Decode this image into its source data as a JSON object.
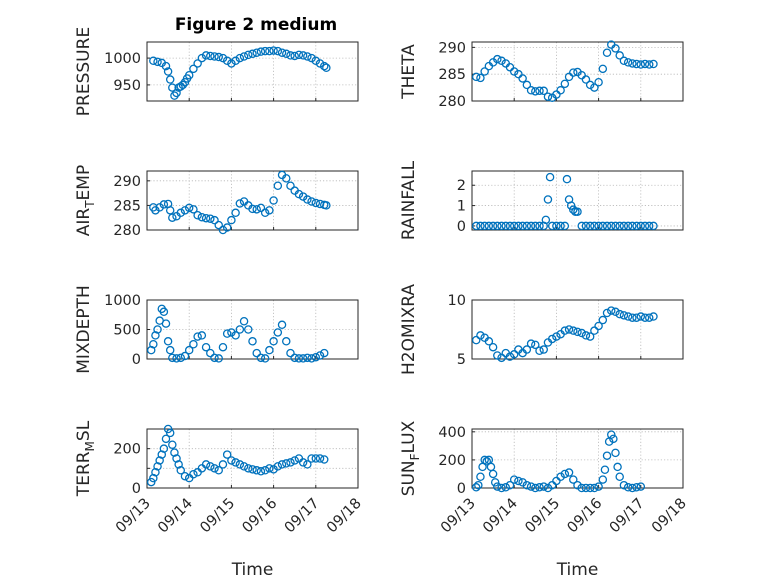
{
  "figure": {
    "title": "Figure 2 medium"
  },
  "chart_data": [
    {
      "type": "scatter",
      "ylabel_main": "PRESSURE",
      "ylabel_sub": "",
      "ylabel_rest": "",
      "xlabel": "",
      "ylim": [
        920,
        1030
      ],
      "yticks": [
        {
          "value": 950,
          "label": "950"
        },
        {
          "value": 1000,
          "label": "1000"
        }
      ],
      "xticks": [],
      "series": [
        {
          "x": [
            13.15,
            13.25,
            13.35,
            13.45,
            13.5,
            13.55,
            13.6,
            13.65,
            13.7,
            13.75,
            13.8,
            13.85,
            13.9,
            13.95,
            14.0,
            14.1,
            14.2,
            14.3,
            14.4,
            14.5,
            14.6,
            14.7,
            14.8,
            14.9,
            15.0,
            15.1,
            15.2,
            15.3,
            15.4,
            15.5,
            15.6,
            15.7,
            15.8,
            15.9,
            16.0,
            16.1,
            16.2,
            16.3,
            16.4,
            16.5,
            16.6,
            16.7,
            16.8,
            16.9,
            17.0,
            17.1,
            17.2,
            17.25
          ],
          "y": [
            995,
            993,
            991,
            985,
            975,
            960,
            945,
            930,
            935,
            945,
            947,
            950,
            955,
            962,
            968,
            980,
            990,
            1000,
            1005,
            1004,
            1003,
            1002,
            1000,
            995,
            990,
            995,
            1000,
            1003,
            1006,
            1008,
            1010,
            1012,
            1013,
            1013,
            1014,
            1013,
            1010,
            1008,
            1005,
            1004,
            1006,
            1005,
            1003,
            1000,
            995,
            990,
            985,
            982
          ]
        }
      ]
    },
    {
      "type": "scatter",
      "ylabel_main": "THETA",
      "ylabel_sub": "",
      "ylabel_rest": "",
      "xlabel": "",
      "ylim": [
        280,
        291
      ],
      "yticks": [
        {
          "value": 280,
          "label": "280"
        },
        {
          "value": 285,
          "label": "285"
        },
        {
          "value": 290,
          "label": "290"
        }
      ],
      "xticks": [],
      "series": [
        {
          "x": [
            13.1,
            13.2,
            13.3,
            13.4,
            13.5,
            13.6,
            13.7,
            13.8,
            13.9,
            14.0,
            14.1,
            14.2,
            14.3,
            14.4,
            14.5,
            14.6,
            14.7,
            14.8,
            14.9,
            15.0,
            15.1,
            15.2,
            15.3,
            15.4,
            15.5,
            15.6,
            15.7,
            15.8,
            15.9,
            16.0,
            16.1,
            16.2,
            16.3,
            16.4,
            16.5,
            16.6,
            16.7,
            16.8,
            16.9,
            17.0,
            17.1,
            17.2,
            17.3
          ],
          "y": [
            284.5,
            284.3,
            285.5,
            286.5,
            287.2,
            287.8,
            287.5,
            287,
            286.3,
            285.5,
            285,
            284.2,
            283,
            282,
            281.8,
            281.9,
            281.9,
            280.8,
            280.6,
            281.2,
            282,
            283.2,
            284.5,
            285.3,
            285.4,
            284.8,
            284,
            283,
            282.5,
            283.5,
            286,
            289,
            290.5,
            289.8,
            288.5,
            287.5,
            287.2,
            287,
            286.9,
            286.8,
            286.9,
            286.8,
            286.9
          ]
        }
      ]
    },
    {
      "type": "scatter",
      "ylabel_main": "AIR",
      "ylabel_sub": "T",
      "ylabel_rest": "EMP",
      "xlabel": "",
      "ylim": [
        280,
        292
      ],
      "yticks": [
        {
          "value": 280,
          "label": "280"
        },
        {
          "value": 285,
          "label": "285"
        },
        {
          "value": 290,
          "label": "290"
        }
      ],
      "xticks": [],
      "series": [
        {
          "x": [
            13.15,
            13.2,
            13.3,
            13.4,
            13.5,
            13.55,
            13.6,
            13.7,
            13.8,
            13.9,
            14.0,
            14.1,
            14.2,
            14.3,
            14.4,
            14.5,
            14.6,
            14.7,
            14.8,
            14.9,
            15.0,
            15.1,
            15.2,
            15.3,
            15.4,
            15.5,
            15.6,
            15.7,
            15.8,
            15.9,
            16.0,
            16.1,
            16.2,
            16.3,
            16.4,
            16.5,
            16.6,
            16.7,
            16.8,
            16.9,
            17.0,
            17.1,
            17.2,
            17.25
          ],
          "y": [
            284.6,
            284,
            284.6,
            285.2,
            285.3,
            284,
            282.5,
            282.8,
            283.5,
            284,
            284.5,
            284.2,
            283,
            282.6,
            282.4,
            282.3,
            282,
            281,
            280,
            280.5,
            282,
            283.5,
            285.4,
            285.8,
            285,
            284.3,
            284.2,
            284.5,
            283.5,
            284,
            286,
            289,
            291.2,
            290.5,
            289,
            288,
            287.3,
            286.8,
            286.2,
            285.8,
            285.5,
            285.3,
            285.1,
            285
          ]
        }
      ]
    },
    {
      "type": "scatter",
      "ylabel_main": "RAINFALL",
      "ylabel_sub": "",
      "ylabel_rest": "",
      "xlabel": "",
      "ylim": [
        -0.2,
        2.7
      ],
      "yticks": [
        {
          "value": 0,
          "label": "0"
        },
        {
          "value": 1,
          "label": "1"
        },
        {
          "value": 2,
          "label": "2"
        }
      ],
      "xticks": [],
      "series": [
        {
          "x": [
            13.1,
            13.2,
            13.3,
            13.4,
            13.5,
            13.6,
            13.7,
            13.8,
            13.9,
            14.0,
            14.1,
            14.2,
            14.3,
            14.4,
            14.5,
            14.6,
            14.7,
            14.75,
            14.8,
            14.85,
            14.9,
            15.0,
            15.1,
            15.2,
            15.25,
            15.3,
            15.35,
            15.4,
            15.45,
            15.5,
            15.6,
            15.7,
            15.8,
            15.9,
            16.0,
            16.1,
            16.2,
            16.3,
            16.4,
            16.5,
            16.6,
            16.7,
            16.8,
            16.9,
            17.0,
            17.1,
            17.2,
            17.3
          ],
          "y": [
            0,
            0,
            0,
            0,
            0,
            0,
            0,
            0,
            0,
            0,
            0,
            0,
            0,
            0,
            0,
            0,
            0,
            0.3,
            1.3,
            2.4,
            0,
            0,
            0,
            0,
            2.3,
            1.3,
            1.0,
            0.8,
            0.7,
            0.7,
            0,
            0,
            0,
            0,
            0,
            0,
            0,
            0,
            0,
            0,
            0,
            0,
            0,
            0,
            0,
            0,
            0,
            0
          ]
        }
      ]
    },
    {
      "type": "scatter",
      "ylabel_main": "MIXDEPTH",
      "ylabel_sub": "",
      "ylabel_rest": "",
      "xlabel": "",
      "ylim": [
        0,
        1000
      ],
      "yticks": [
        {
          "value": 0,
          "label": "0"
        },
        {
          "value": 500,
          "label": "500"
        },
        {
          "value": 1000,
          "label": "1000"
        }
      ],
      "xticks": [],
      "series": [
        {
          "x": [
            13.1,
            13.15,
            13.2,
            13.25,
            13.3,
            13.35,
            13.4,
            13.45,
            13.5,
            13.55,
            13.6,
            13.7,
            13.8,
            13.9,
            14.0,
            14.1,
            14.2,
            14.3,
            14.4,
            14.5,
            14.6,
            14.7,
            14.8,
            14.9,
            15.0,
            15.1,
            15.2,
            15.3,
            15.4,
            15.5,
            15.6,
            15.7,
            15.8,
            15.9,
            16.0,
            16.1,
            16.2,
            16.3,
            16.4,
            16.5,
            16.6,
            16.7,
            16.8,
            16.9,
            17.0,
            17.1,
            17.2
          ],
          "y": [
            150,
            250,
            400,
            500,
            650,
            850,
            800,
            600,
            300,
            150,
            20,
            10,
            20,
            50,
            150,
            250,
            380,
            400,
            200,
            100,
            20,
            10,
            200,
            430,
            450,
            400,
            500,
            640,
            500,
            300,
            100,
            20,
            10,
            150,
            300,
            450,
            580,
            300,
            100,
            20,
            10,
            10,
            20,
            10,
            30,
            60,
            100
          ]
        }
      ]
    },
    {
      "type": "scatter",
      "ylabel_main": "H2OMIXRA",
      "ylabel_sub": "",
      "ylabel_rest": "",
      "xlabel": "",
      "ylim": [
        5,
        10
      ],
      "yticks": [
        {
          "value": 5,
          "label": "5"
        },
        {
          "value": 10,
          "label": "10"
        }
      ],
      "xticks": [],
      "series": [
        {
          "x": [
            13.1,
            13.2,
            13.3,
            13.4,
            13.5,
            13.6,
            13.7,
            13.8,
            13.9,
            14.0,
            14.1,
            14.2,
            14.3,
            14.4,
            14.5,
            14.6,
            14.7,
            14.8,
            14.9,
            15.0,
            15.1,
            15.2,
            15.3,
            15.4,
            15.5,
            15.6,
            15.7,
            15.8,
            15.9,
            16.0,
            16.1,
            16.2,
            16.3,
            16.4,
            16.5,
            16.6,
            16.7,
            16.8,
            16.9,
            17.0,
            17.1,
            17.2,
            17.3
          ],
          "y": [
            6.6,
            7.0,
            6.8,
            6.5,
            6.0,
            5.3,
            5.1,
            5.5,
            5.2,
            5.4,
            5.8,
            5.5,
            5.8,
            6.3,
            6.2,
            5.7,
            5.8,
            6.4,
            6.7,
            6.9,
            7.1,
            7.4,
            7.5,
            7.4,
            7.3,
            7.2,
            7.0,
            6.9,
            7.4,
            7.8,
            8.3,
            8.9,
            9.1,
            9.0,
            8.8,
            8.7,
            8.6,
            8.5,
            8.5,
            8.6,
            8.5,
            8.5,
            8.6
          ]
        }
      ]
    },
    {
      "type": "scatter",
      "ylabel_main": "TERR",
      "ylabel_sub": "M",
      "ylabel_rest": "SL",
      "xlabel": "Time",
      "ylim": [
        0,
        300
      ],
      "yticks": [
        {
          "value": 0,
          "label": "0"
        },
        {
          "value": 100,
          "label": ""
        },
        {
          "value": 200,
          "label": "200"
        }
      ],
      "xticks": [
        {
          "value": 13,
          "label": "09/13"
        },
        {
          "value": 14,
          "label": "09/14"
        },
        {
          "value": 15,
          "label": "09/15"
        },
        {
          "value": 16,
          "label": "09/16"
        },
        {
          "value": 17,
          "label": "09/17"
        },
        {
          "value": 18,
          "label": "09/18"
        }
      ],
      "series": [
        {
          "x": [
            13.1,
            13.15,
            13.2,
            13.25,
            13.3,
            13.35,
            13.4,
            13.45,
            13.5,
            13.55,
            13.6,
            13.65,
            13.7,
            13.75,
            13.8,
            13.9,
            14.0,
            14.1,
            14.2,
            14.3,
            14.4,
            14.5,
            14.6,
            14.7,
            14.8,
            14.9,
            15.0,
            15.1,
            15.2,
            15.3,
            15.4,
            15.5,
            15.6,
            15.7,
            15.8,
            15.9,
            16.0,
            16.1,
            16.2,
            16.3,
            16.4,
            16.5,
            16.6,
            16.7,
            16.8,
            16.9,
            17.0,
            17.1,
            17.2
          ],
          "y": [
            30,
            50,
            80,
            110,
            140,
            170,
            200,
            250,
            300,
            280,
            220,
            180,
            150,
            120,
            90,
            60,
            50,
            70,
            80,
            100,
            120,
            110,
            100,
            90,
            120,
            170,
            140,
            130,
            120,
            110,
            100,
            95,
            90,
            85,
            90,
            100,
            95,
            110,
            120,
            125,
            130,
            140,
            150,
            130,
            120,
            150,
            150,
            150,
            145
          ]
        }
      ]
    },
    {
      "type": "scatter",
      "ylabel_main": "SUN",
      "ylabel_sub": "F",
      "ylabel_rest": "LUX",
      "xlabel": "Time",
      "ylim": [
        0,
        420
      ],
      "yticks": [
        {
          "value": 0,
          "label": "0"
        },
        {
          "value": 200,
          "label": "200"
        },
        {
          "value": 400,
          "label": "400"
        }
      ],
      "xticks": [
        {
          "value": 13,
          "label": "09/13"
        },
        {
          "value": 14,
          "label": "09/14"
        },
        {
          "value": 15,
          "label": "09/15"
        },
        {
          "value": 16,
          "label": "09/16"
        },
        {
          "value": 17,
          "label": "09/17"
        },
        {
          "value": 18,
          "label": "09/18"
        }
      ],
      "series": [
        {
          "x": [
            13.1,
            13.15,
            13.2,
            13.25,
            13.3,
            13.35,
            13.4,
            13.45,
            13.5,
            13.55,
            13.6,
            13.7,
            13.8,
            13.9,
            14.0,
            14.1,
            14.2,
            14.3,
            14.4,
            14.5,
            14.6,
            14.7,
            14.8,
            14.9,
            15.0,
            15.1,
            15.2,
            15.3,
            15.4,
            15.5,
            15.6,
            15.7,
            15.8,
            15.9,
            16.0,
            16.1,
            16.15,
            16.2,
            16.25,
            16.3,
            16.35,
            16.4,
            16.45,
            16.5,
            16.6,
            16.7,
            16.8,
            16.9,
            17.0
          ],
          "y": [
            5,
            20,
            80,
            150,
            200,
            190,
            200,
            150,
            100,
            40,
            10,
            0,
            5,
            20,
            60,
            50,
            40,
            20,
            10,
            0,
            5,
            10,
            0,
            20,
            50,
            80,
            100,
            110,
            60,
            20,
            0,
            0,
            0,
            0,
            10,
            60,
            130,
            230,
            330,
            380,
            350,
            250,
            150,
            80,
            20,
            5,
            0,
            5,
            10
          ]
        }
      ]
    }
  ],
  "colors": {
    "marker": "#0072bd",
    "axis": "#262626",
    "grid": "#b8b8b8"
  }
}
